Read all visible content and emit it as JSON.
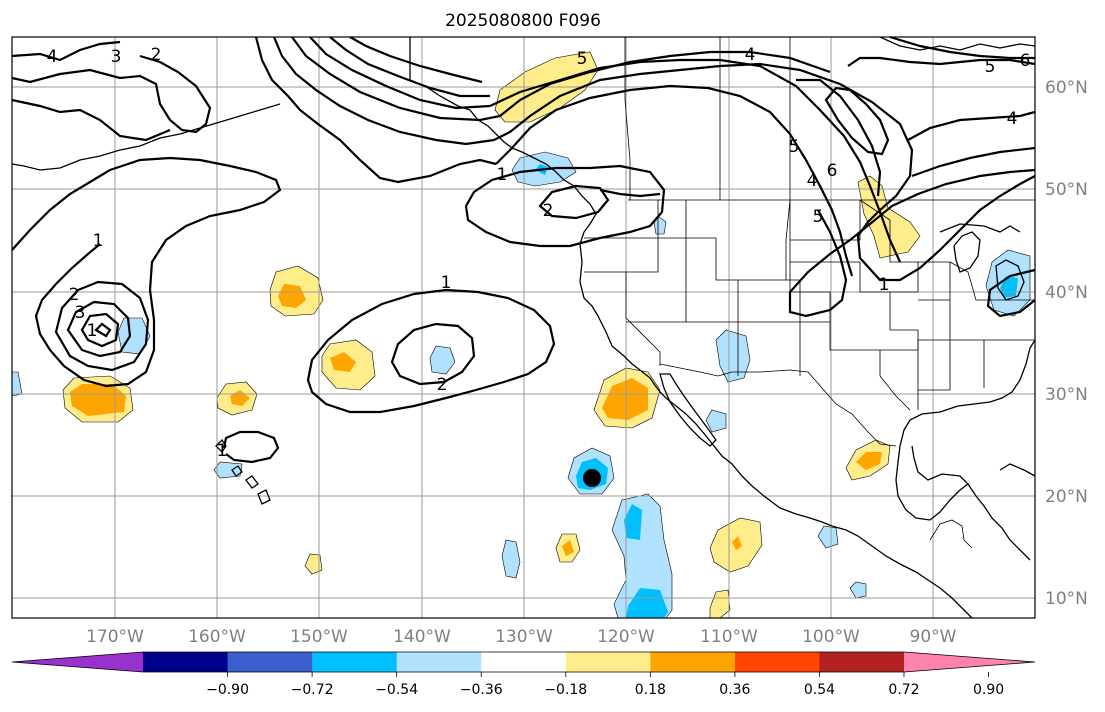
{
  "title": "2025080800 F096",
  "longitude_labels": [
    "170°W",
    "160°W",
    "150°W",
    "140°W",
    "130°W",
    "120°W",
    "110°W",
    "100°W",
    "90°W"
  ],
  "latitude_labels": [
    "60°N",
    "50°N",
    "40°N",
    "30°N",
    "20°N",
    "10°N"
  ],
  "colorbar": {
    "tick_labels": [
      "−0.90",
      "−0.72",
      "−0.54",
      "−0.36",
      "−0.18",
      "0.18",
      "0.36",
      "0.54",
      "0.72",
      "0.90"
    ],
    "colors": [
      "#9932cc",
      "#00008b",
      "#3a5fcd",
      "#00bfff",
      "#b0e2ff",
      "#ffffff",
      "#ffec8b",
      "#ffa500",
      "#ff4500",
      "#b22222",
      "#ff82ab"
    ]
  },
  "contour_labels": [
    "4",
    "3",
    "2",
    "5",
    "5",
    "6",
    "4",
    "5",
    "6",
    "4",
    "5",
    "4",
    "1",
    "1",
    "2",
    "1",
    "2",
    "3",
    "1",
    "1",
    "2",
    "1"
  ],
  "colors": {
    "light_blue": "#b0e2ff",
    "blue": "#00bfff",
    "light_yellow": "#ffec8b",
    "orange": "#ffa500",
    "grid": "#9a9a9a",
    "tick_text": "#808080"
  },
  "marker": "storm-center-dot"
}
